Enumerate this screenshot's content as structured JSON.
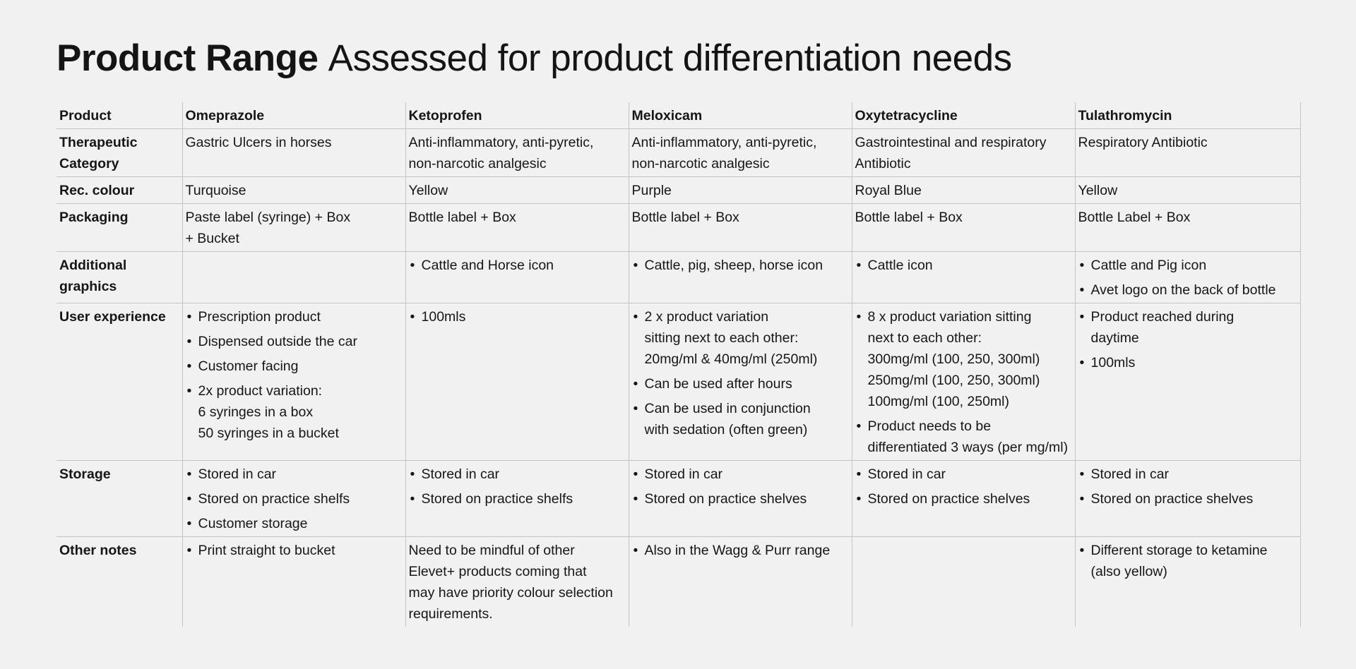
{
  "title": {
    "bold": "Product Range",
    "rest": "Assessed for product differentiation needs"
  },
  "table": {
    "header": [
      "Product",
      "Omeprazole",
      "Ketoprofen",
      "Meloxicam",
      "Oxytetracycline",
      "Tulathromycin"
    ],
    "rows": [
      {
        "label": "Therapeutic\nCategory",
        "cells": [
          {
            "text": "Gastric Ulcers in horses"
          },
          {
            "text": "Anti-inflammatory, anti-pyretic,\nnon-narcotic analgesic"
          },
          {
            "text": "Anti-inflammatory, anti-pyretic,\nnon-narcotic analgesic"
          },
          {
            "text": "Gastrointestinal and respiratory\nAntibiotic"
          },
          {
            "text": "Respiratory Antibiotic"
          }
        ]
      },
      {
        "label": "Rec. colour",
        "cells": [
          {
            "text": "Turquoise"
          },
          {
            "text": "Yellow"
          },
          {
            "text": "Purple"
          },
          {
            "text": "Royal Blue"
          },
          {
            "text": "Yellow"
          }
        ]
      },
      {
        "label": "Packaging",
        "cells": [
          {
            "text": "Paste label (syringe) + Box\n+ Bucket"
          },
          {
            "text": "Bottle label + Box"
          },
          {
            "text": "Bottle label + Box"
          },
          {
            "text": "Bottle label + Box"
          },
          {
            "text": "Bottle Label + Box"
          }
        ]
      },
      {
        "label": "Additional\ngraphics",
        "cells": [
          {
            "text": ""
          },
          {
            "bullets": [
              "Cattle and Horse icon"
            ]
          },
          {
            "bullets": [
              "Cattle, pig, sheep, horse icon"
            ]
          },
          {
            "bullets": [
              "Cattle icon"
            ]
          },
          {
            "bullets": [
              "Cattle and Pig icon",
              "Avet logo on the back of bottle"
            ]
          }
        ]
      },
      {
        "label": "User experience",
        "cells": [
          {
            "bullets": [
              "Prescription product",
              "Dispensed outside the car",
              "Customer facing",
              "2x product variation:\n6 syringes in a box\n50 syringes in a bucket"
            ]
          },
          {
            "bullets": [
              "100mls"
            ]
          },
          {
            "bullets": [
              "2 x product variation\nsitting next to each other:\n20mg/ml & 40mg/ml (250ml)",
              "Can be used after hours",
              "Can be used in conjunction\nwith sedation (often green)"
            ]
          },
          {
            "bullets": [
              "8 x product variation sitting\nnext to each other:\n300mg/ml (100, 250, 300ml)\n250mg/ml (100, 250, 300ml)\n100mg/ml (100, 250ml)",
              "Product needs to be\ndifferentiated 3 ways (per mg/ml)"
            ]
          },
          {
            "bullets": [
              "Product reached during\ndaytime",
              "100mls"
            ]
          }
        ]
      },
      {
        "label": "Storage",
        "cells": [
          {
            "bullets": [
              "Stored in car",
              "Stored on practice shelfs",
              "Customer storage"
            ]
          },
          {
            "bullets": [
              "Stored in car",
              "Stored on practice shelfs"
            ]
          },
          {
            "bullets": [
              "Stored in car",
              "Stored on practice shelves"
            ]
          },
          {
            "bullets": [
              "Stored in car",
              "Stored on practice shelves"
            ]
          },
          {
            "bullets": [
              "Stored in car",
              "Stored on practice shelves"
            ]
          }
        ]
      },
      {
        "label": "Other notes",
        "cells": [
          {
            "bullets": [
              "Print straight to bucket"
            ]
          },
          {
            "text": "Need to be mindful of other\nElevet+ products coming that\nmay have priority colour selection\nrequirements."
          },
          {
            "bullets": [
              "Also in the Wagg & Purr range"
            ]
          },
          {
            "text": ""
          },
          {
            "bullets": [
              "Different storage to ketamine\n(also yellow)"
            ]
          }
        ]
      }
    ]
  }
}
